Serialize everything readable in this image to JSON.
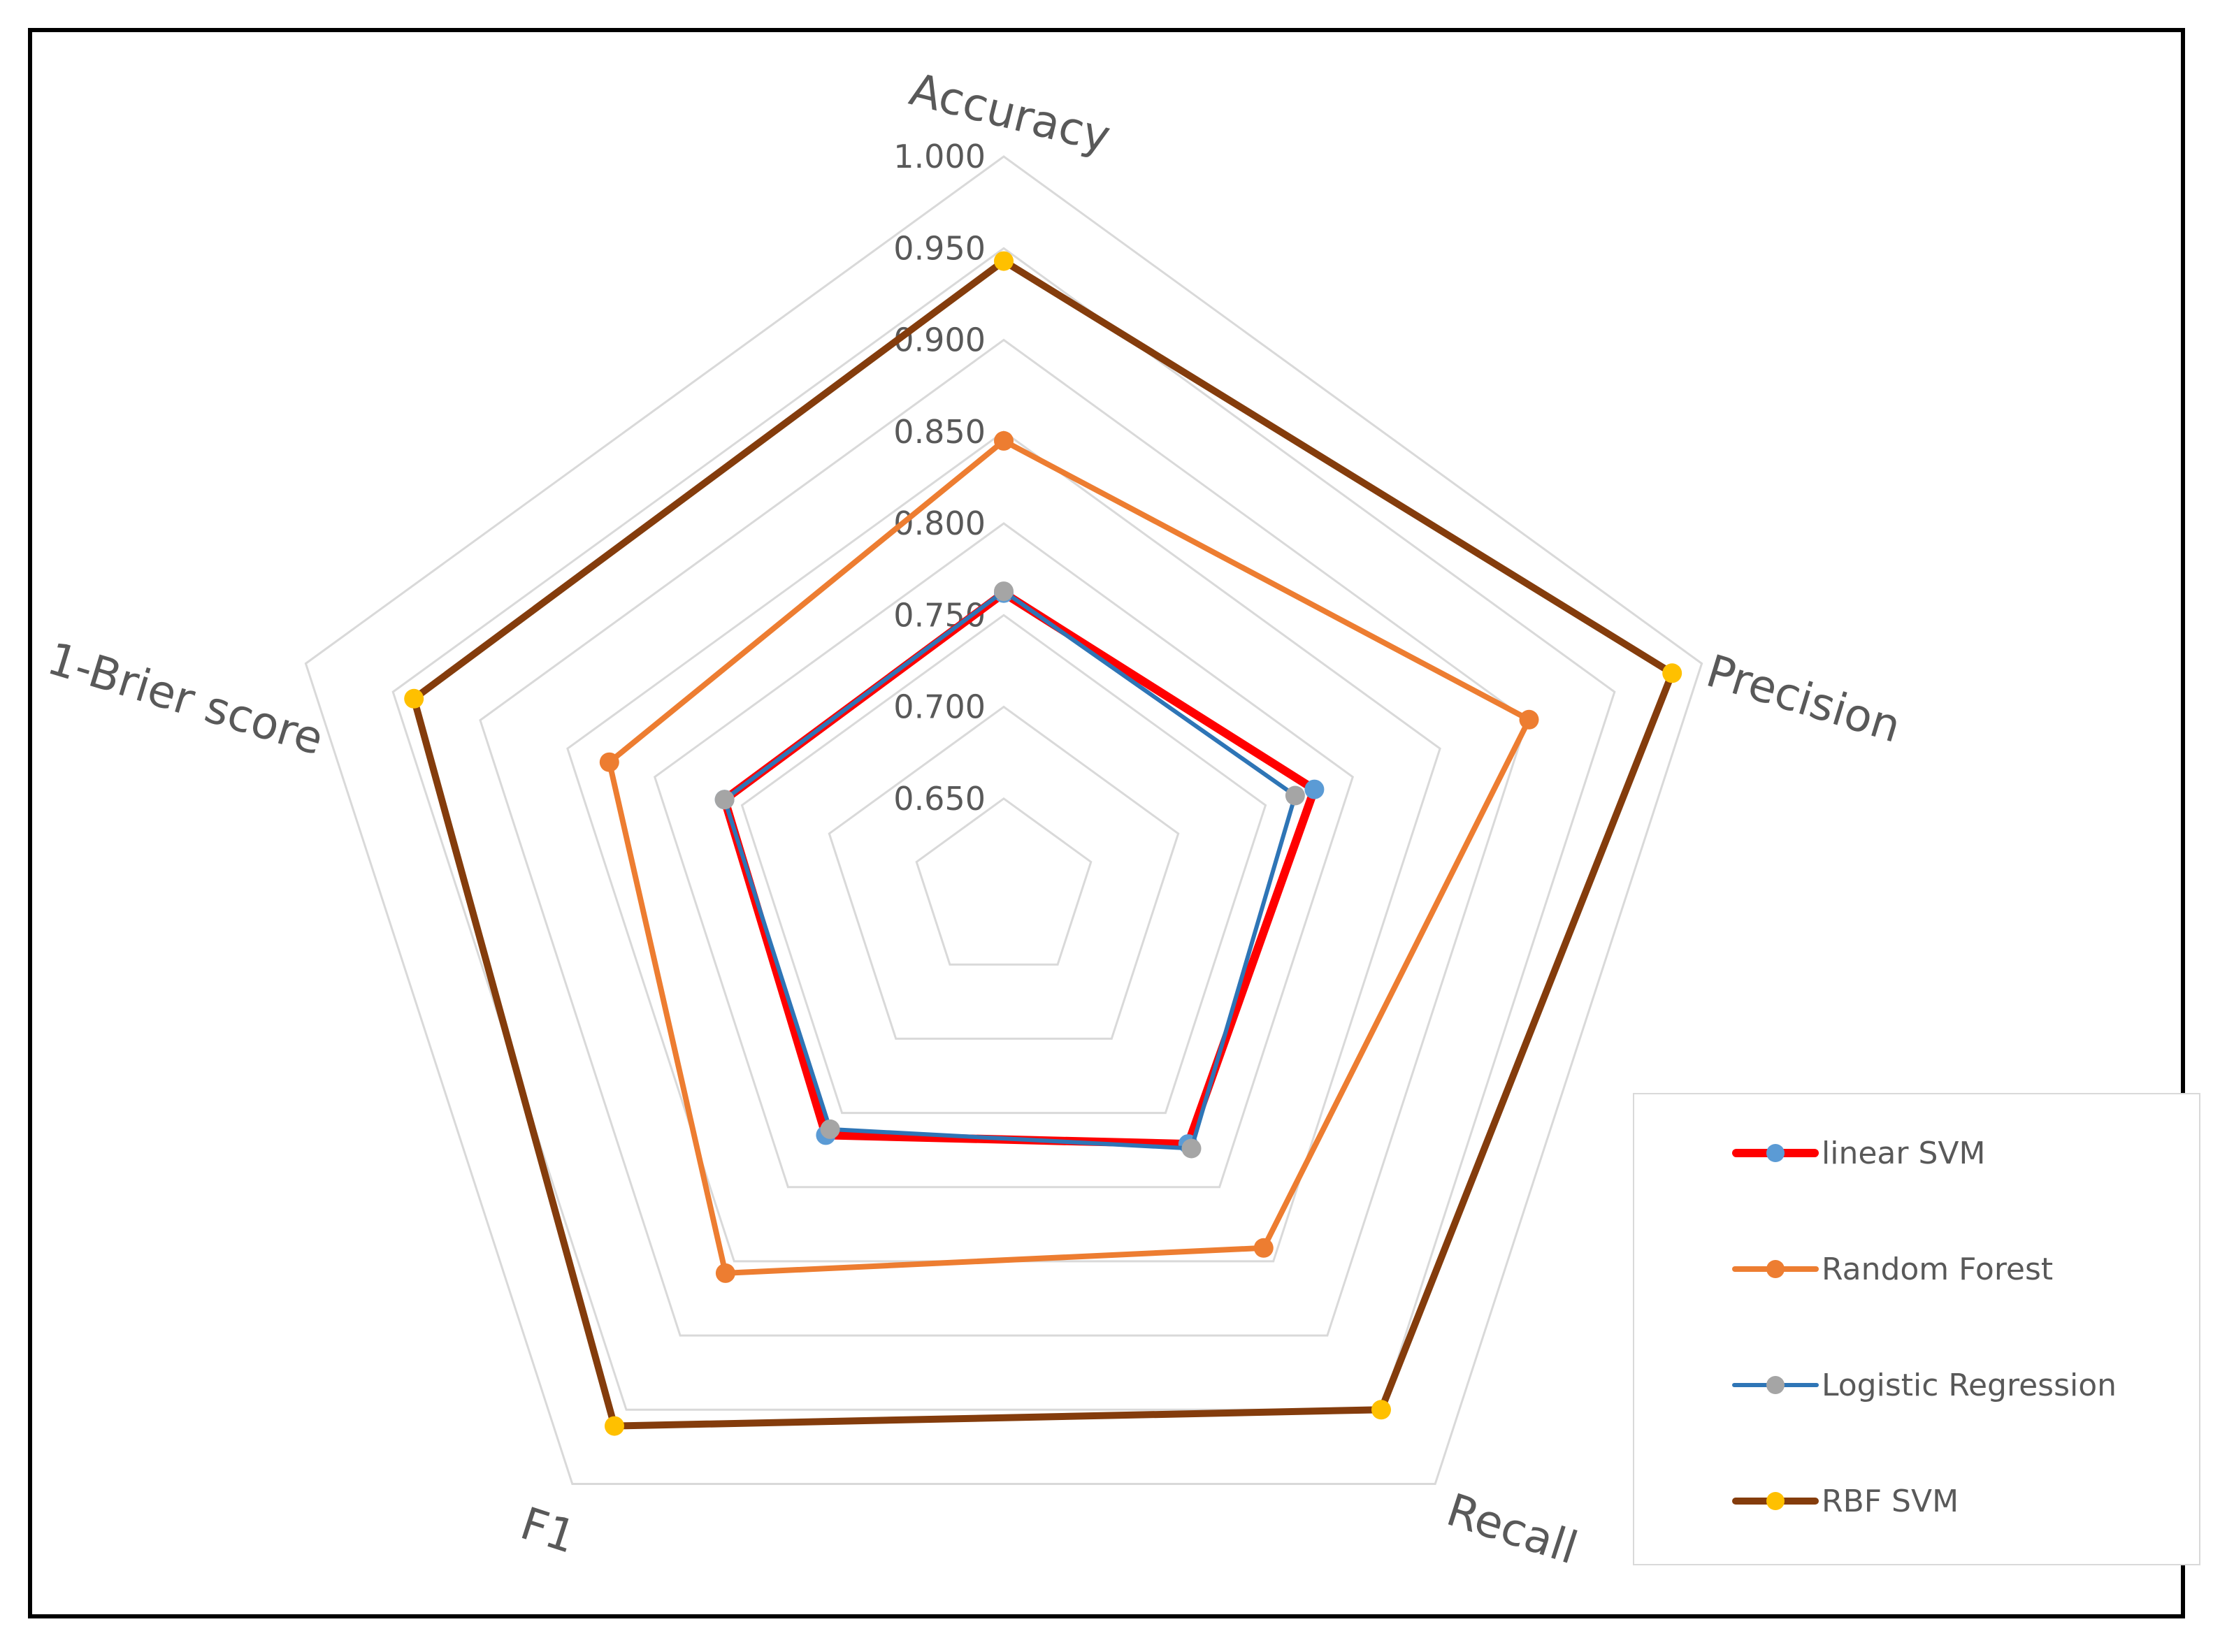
{
  "chart_data": {
    "type": "radar",
    "axes": [
      "Accuracy",
      "Precision",
      "Recall",
      "F1",
      "1-Brier score"
    ],
    "rlim": [
      0.6,
      1.0
    ],
    "ticks": [
      0.65,
      0.7,
      0.75,
      0.8,
      0.85,
      0.9,
      0.95,
      1.0
    ],
    "tick_labels": [
      "0.650",
      "0.700",
      "0.750",
      "0.800",
      "0.850",
      "0.900",
      "0.950",
      "1.000"
    ],
    "grid": true,
    "legend_position": "bottom-right",
    "series": [
      {
        "name": "linear SVM",
        "values": [
          0.762,
          0.778,
          0.771,
          0.765,
          0.76
        ],
        "color": "#ff0000",
        "marker": "#5b9bd5"
      },
      {
        "name": "Random Forest",
        "values": [
          0.845,
          0.901,
          0.841,
          0.858,
          0.826
        ],
        "color": "#ed7d31",
        "marker": "#ed7d31"
      },
      {
        "name": "Logistic Regression",
        "values": [
          0.763,
          0.767,
          0.774,
          0.761,
          0.76
        ],
        "color": "#2e75b6",
        "marker": "#a5a5a5"
      },
      {
        "name": "RBF SVM",
        "values": [
          0.943,
          0.983,
          0.95,
          0.961,
          0.938
        ],
        "color": "#843c0c",
        "marker": "#ffc000"
      }
    ]
  }
}
